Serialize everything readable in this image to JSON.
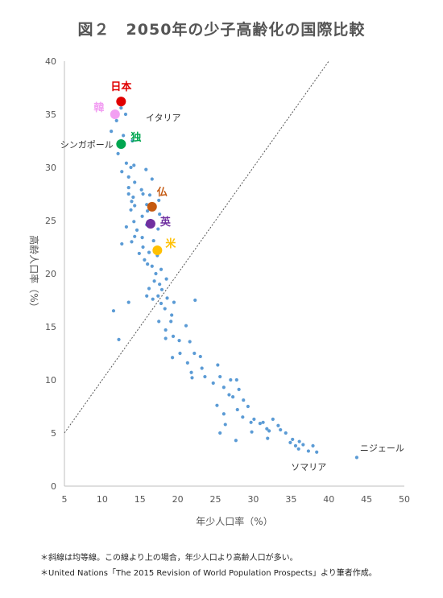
{
  "title": "図２　2050年の少子高齢化の国際比較",
  "notes": [
    "＊斜線は均等線。この線より上の場合，年少人口より高齢人口が多い。",
    "＊United Nations「The 2015 Revision of World Population Prospects」より筆者作成。"
  ],
  "chart_data": {
    "type": "scatter",
    "title": "図２　2050年の少子高齢化の国際比較",
    "xlabel": "年少人口率（%）",
    "ylabel": "高齢人口率（%）",
    "xlim": [
      5,
      50
    ],
    "ylim": [
      0,
      40
    ],
    "xticks": [
      5,
      10,
      15,
      20,
      25,
      30,
      35,
      40,
      45,
      50
    ],
    "yticks": [
      0,
      5,
      10,
      15,
      20,
      25,
      30,
      35,
      40
    ],
    "grid": false,
    "reference_line": {
      "label": "均等線",
      "from": [
        5,
        5
      ],
      "to": [
        40,
        40
      ],
      "style": "dotted"
    },
    "series_color": "#5b9bd5",
    "points": [
      [
        12.5,
        35.6
      ],
      [
        13.1,
        35.0
      ],
      [
        11.9,
        34.4
      ],
      [
        11.2,
        33.4
      ],
      [
        12.8,
        33.0
      ],
      [
        14.0,
        32.5
      ],
      [
        12.1,
        31.3
      ],
      [
        13.2,
        30.4
      ],
      [
        13.8,
        30.0
      ],
      [
        14.2,
        30.2
      ],
      [
        12.6,
        29.6
      ],
      [
        15.8,
        29.8
      ],
      [
        13.5,
        29.1
      ],
      [
        14.3,
        28.6
      ],
      [
        16.6,
        28.9
      ],
      [
        13.5,
        28.1
      ],
      [
        15.2,
        27.9
      ],
      [
        13.5,
        27.5
      ],
      [
        15.4,
        27.5
      ],
      [
        14.1,
        27.2
      ],
      [
        16.3,
        27.4
      ],
      [
        13.9,
        26.8
      ],
      [
        15.9,
        26.5
      ],
      [
        17.5,
        26.9
      ],
      [
        14.3,
        26.4
      ],
      [
        13.8,
        26.0
      ],
      [
        16.0,
        25.9
      ],
      [
        15.3,
        25.4
      ],
      [
        17.6,
        25.6
      ],
      [
        14.2,
        24.9
      ],
      [
        16.4,
        25.0
      ],
      [
        15.9,
        24.6
      ],
      [
        13.2,
        24.4
      ],
      [
        14.6,
        24.1
      ],
      [
        17.4,
        24.2
      ],
      [
        14.3,
        23.5
      ],
      [
        15.3,
        23.4
      ],
      [
        16.8,
        23.1
      ],
      [
        13.9,
        23.0
      ],
      [
        12.6,
        22.8
      ],
      [
        15.4,
        22.5
      ],
      [
        16.2,
        22.0
      ],
      [
        14.9,
        21.9
      ],
      [
        17.3,
        21.7
      ],
      [
        15.6,
        21.3
      ],
      [
        16.0,
        20.9
      ],
      [
        16.6,
        20.7
      ],
      [
        17.8,
        20.4
      ],
      [
        17.1,
        20.0
      ],
      [
        16.9,
        19.3
      ],
      [
        18.5,
        19.5
      ],
      [
        17.6,
        19.0
      ],
      [
        16.2,
        18.6
      ],
      [
        17.9,
        18.5
      ],
      [
        15.9,
        17.9
      ],
      [
        16.7,
        17.6
      ],
      [
        17.4,
        17.9
      ],
      [
        18.6,
        17.7
      ],
      [
        17.8,
        17.2
      ],
      [
        19.5,
        17.3
      ],
      [
        22.3,
        17.5
      ],
      [
        13.5,
        17.3
      ],
      [
        11.5,
        16.5
      ],
      [
        18.3,
        16.7
      ],
      [
        19.2,
        16.1
      ],
      [
        17.5,
        15.5
      ],
      [
        19.1,
        15.5
      ],
      [
        18.4,
        14.7
      ],
      [
        21.1,
        15.1
      ],
      [
        19.4,
        14.1
      ],
      [
        18.4,
        13.9
      ],
      [
        20.2,
        13.7
      ],
      [
        21.6,
        13.6
      ],
      [
        12.2,
        13.8
      ],
      [
        20.3,
        12.5
      ],
      [
        22.2,
        12.5
      ],
      [
        19.3,
        12.1
      ],
      [
        23.0,
        12.2
      ],
      [
        21.3,
        11.6
      ],
      [
        23.2,
        11.1
      ],
      [
        25.3,
        11.4
      ],
      [
        21.8,
        10.7
      ],
      [
        23.6,
        10.3
      ],
      [
        25.6,
        10.3
      ],
      [
        21.9,
        10.2
      ],
      [
        24.7,
        9.7
      ],
      [
        27.0,
        10.0
      ],
      [
        27.8,
        10.0
      ],
      [
        26.1,
        9.3
      ],
      [
        28.1,
        9.1
      ],
      [
        26.8,
        8.6
      ],
      [
        27.3,
        8.4
      ],
      [
        28.7,
        8.1
      ],
      [
        25.2,
        7.6
      ],
      [
        27.9,
        7.2
      ],
      [
        29.3,
        7.5
      ],
      [
        26.1,
        6.8
      ],
      [
        28.6,
        6.5
      ],
      [
        30.1,
        6.3
      ],
      [
        32.6,
        6.3
      ],
      [
        29.7,
        6.0
      ],
      [
        31.3,
        6.0
      ],
      [
        30.9,
        5.9
      ],
      [
        26.3,
        5.8
      ],
      [
        33.3,
        5.7
      ],
      [
        31.8,
        5.4
      ],
      [
        32.1,
        5.2
      ],
      [
        33.6,
        5.3
      ],
      [
        34.3,
        5.0
      ],
      [
        25.6,
        5.0
      ],
      [
        29.8,
        5.1
      ],
      [
        27.7,
        4.3
      ],
      [
        31.9,
        4.5
      ],
      [
        35.2,
        4.4
      ],
      [
        36.1,
        4.2
      ],
      [
        34.9,
        4.1
      ],
      [
        35.6,
        3.8
      ],
      [
        36.6,
        3.9
      ],
      [
        36.0,
        3.5
      ],
      [
        37.3,
        3.3
      ],
      [
        37.9,
        3.8
      ],
      [
        38.4,
        3.2
      ],
      [
        43.7,
        2.7
      ]
    ],
    "highlighted": [
      {
        "label": "日本",
        "x": 12.5,
        "y": 36.2,
        "color": "#e00000",
        "label_color": "#e00000",
        "dot": true
      },
      {
        "label": "韓",
        "x": 11.7,
        "y": 35.0,
        "color": "#f29ff2",
        "label_color": "#f29ff2",
        "dot": true
      },
      {
        "label": "独",
        "x": 12.5,
        "y": 32.2,
        "color": "#00a650",
        "label_color": "#00a650",
        "dot": true
      },
      {
        "label": "仏",
        "x": 16.6,
        "y": 26.3,
        "color": "#c55a11",
        "label_color": "#c55a11",
        "dot": true
      },
      {
        "label": "英",
        "x": 16.4,
        "y": 24.7,
        "color": "#7030a0",
        "label_color": "#7030a0",
        "dot": true
      },
      {
        "label": "米",
        "x": 17.3,
        "y": 22.2,
        "color": "#ffc000",
        "label_color": "#ffc000",
        "dot": true
      },
      {
        "label": "イタリア",
        "x": 13.2,
        "y": 35.0,
        "label_color": "#333333",
        "dot": false
      },
      {
        "label": "シンガポール",
        "x": 11.9,
        "y": 33.3,
        "label_color": "#333333",
        "dot": false
      },
      {
        "label": "ニジェール",
        "x": 43.7,
        "y": 2.7,
        "label_color": "#333333",
        "dot": false
      },
      {
        "label": "ソマリア",
        "x": 38.4,
        "y": 3.2,
        "label_color": "#333333",
        "dot": false
      }
    ]
  }
}
